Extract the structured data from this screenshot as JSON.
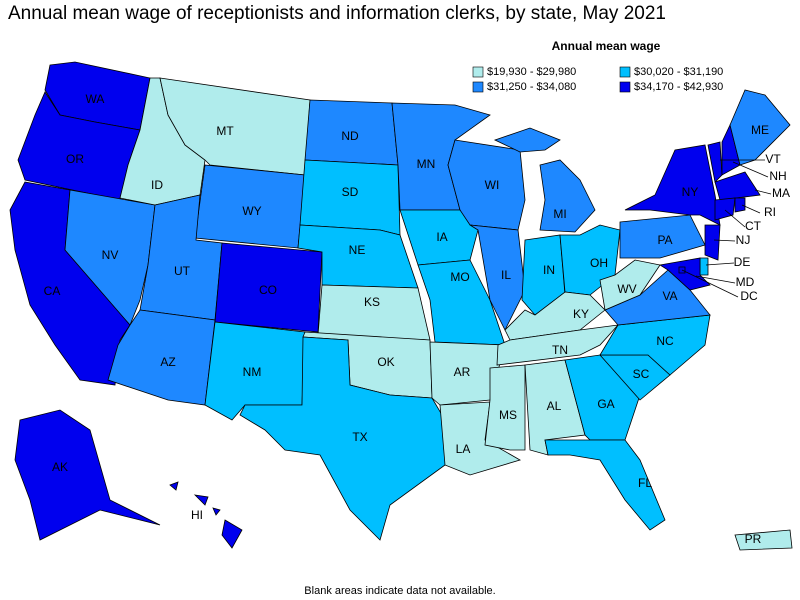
{
  "title": "Annual mean wage of receptionists and information clerks, by state, May 2021",
  "legend": {
    "title": "Annual mean wage",
    "items": [
      {
        "label": "$19,930 - $29,980",
        "color": "#b0ecec"
      },
      {
        "label": "$30,020 - $31,190",
        "color": "#00bfff"
      },
      {
        "label": "$31,250 - $34,080",
        "color": "#1e88ff"
      },
      {
        "label": "$34,170 - $42,930",
        "color": "#0000ee"
      }
    ]
  },
  "states": [
    {
      "label": "WA",
      "bin": 3
    },
    {
      "label": "OR",
      "bin": 3
    },
    {
      "label": "CA",
      "bin": 3
    },
    {
      "label": "NV",
      "bin": 2
    },
    {
      "label": "ID",
      "bin": 0
    },
    {
      "label": "MT",
      "bin": 0
    },
    {
      "label": "WY",
      "bin": 2
    },
    {
      "label": "UT",
      "bin": 2
    },
    {
      "label": "AZ",
      "bin": 2
    },
    {
      "label": "CO",
      "bin": 3
    },
    {
      "label": "NM",
      "bin": 1
    },
    {
      "label": "ND",
      "bin": 2
    },
    {
      "label": "SD",
      "bin": 1
    },
    {
      "label": "NE",
      "bin": 1
    },
    {
      "label": "KS",
      "bin": 0
    },
    {
      "label": "OK",
      "bin": 0
    },
    {
      "label": "TX",
      "bin": 1
    },
    {
      "label": "MN",
      "bin": 2
    },
    {
      "label": "IA",
      "bin": 1
    },
    {
      "label": "MO",
      "bin": 1
    },
    {
      "label": "AR",
      "bin": 0
    },
    {
      "label": "LA",
      "bin": 0
    },
    {
      "label": "WI",
      "bin": 2
    },
    {
      "label": "IL",
      "bin": 2
    },
    {
      "label": "MI",
      "bin": 2
    },
    {
      "label": "IN",
      "bin": 1
    },
    {
      "label": "OH",
      "bin": 1
    },
    {
      "label": "KY",
      "bin": 0
    },
    {
      "label": "TN",
      "bin": 0
    },
    {
      "label": "MS",
      "bin": 0
    },
    {
      "label": "AL",
      "bin": 0
    },
    {
      "label": "GA",
      "bin": 1
    },
    {
      "label": "FL",
      "bin": 1
    },
    {
      "label": "SC",
      "bin": 1
    },
    {
      "label": "NC",
      "bin": 1
    },
    {
      "label": "VA",
      "bin": 2
    },
    {
      "label": "WV",
      "bin": 0
    },
    {
      "label": "PA",
      "bin": 2
    },
    {
      "label": "NY",
      "bin": 3
    },
    {
      "label": "VT",
      "bin": 3
    },
    {
      "label": "NH",
      "bin": 3
    },
    {
      "label": "ME",
      "bin": 2
    },
    {
      "label": "MA",
      "bin": 3
    },
    {
      "label": "RI",
      "bin": 3
    },
    {
      "label": "CT",
      "bin": 3
    },
    {
      "label": "NJ",
      "bin": 3
    },
    {
      "label": "DE",
      "bin": 1
    },
    {
      "label": "MD",
      "bin": 3
    },
    {
      "label": "DC",
      "bin": 3
    },
    {
      "label": "AK",
      "bin": 3
    },
    {
      "label": "HI",
      "bin": 3
    },
    {
      "label": "PR",
      "bin": 0
    }
  ],
  "note": "Blank areas indicate data not available."
}
